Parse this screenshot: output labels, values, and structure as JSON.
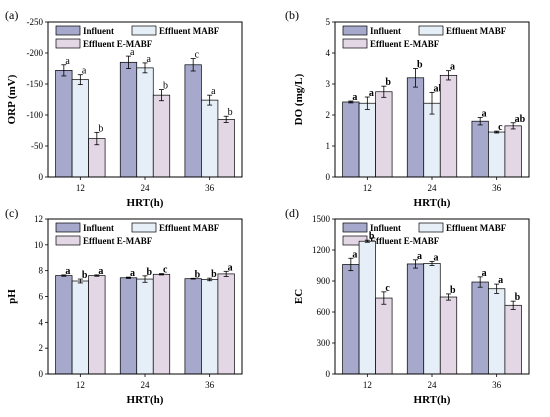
{
  "colors": {
    "influent": "#a6a9cc",
    "mabf": "#e6eff8",
    "emabf": "#e4d7e5",
    "stroke": "#000000"
  },
  "legend": [
    "Influent",
    "Effluent MABF",
    "Effluent E-MABF"
  ],
  "chart_data": [
    {
      "panel": "(a)",
      "type": "bar",
      "xlabel": "HRT(h)",
      "ylabel": "ORP (mV)",
      "categories": [
        "12",
        "24",
        "36"
      ],
      "ylim": [
        0,
        -250
      ],
      "yticks": [
        0,
        -50,
        -100,
        -150,
        -200,
        -250
      ],
      "yticklabels": [
        "0",
        "-50",
        "-100",
        "-150",
        "-200",
        "-250"
      ],
      "label_bold": false,
      "series": [
        {
          "name": "Influent",
          "values": [
            -172,
            -185,
            -181
          ],
          "errors": [
            9,
            10,
            10
          ],
          "labels": [
            "a",
            "a",
            "c"
          ]
        },
        {
          "name": "Effluent MABF",
          "values": [
            -157,
            -176,
            -124
          ],
          "errors": [
            8,
            8,
            8
          ],
          "labels": [
            "a",
            "a",
            "a"
          ]
        },
        {
          "name": "Effluent E-MABF",
          "values": [
            -62,
            -132,
            -93
          ],
          "errors": [
            10,
            9,
            5
          ],
          "labels": [
            "b",
            "b",
            "b"
          ]
        }
      ]
    },
    {
      "panel": "(b)",
      "type": "bar",
      "xlabel": "HRT(h)",
      "ylabel": "DO (mg/L)",
      "categories": [
        "12",
        "24",
        "36"
      ],
      "ylim": [
        0,
        5
      ],
      "yticks": [
        0,
        1,
        2,
        3,
        4,
        5
      ],
      "yticklabels": [
        "0",
        "1",
        "2",
        "3",
        "4",
        "5"
      ],
      "label_bold": true,
      "series": [
        {
          "name": "Influent",
          "values": [
            2.42,
            3.2,
            1.8
          ],
          "errors": [
            0.03,
            0.3,
            0.12
          ],
          "labels": [
            "a",
            "b",
            "a"
          ]
        },
        {
          "name": "Effluent MABF",
          "values": [
            2.38,
            2.38,
            1.45
          ],
          "errors": [
            0.2,
            0.35,
            0.03
          ],
          "labels": [
            "a",
            "ab",
            "c"
          ]
        },
        {
          "name": "Effluent E-MABF",
          "values": [
            2.75,
            3.28,
            1.65
          ],
          "errors": [
            0.18,
            0.15,
            0.1
          ],
          "labels": [
            "b",
            "a",
            "ab"
          ]
        }
      ]
    },
    {
      "panel": "(c)",
      "type": "bar",
      "xlabel": "HRT(h)",
      "ylabel": "pH",
      "categories": [
        "12",
        "24",
        "36"
      ],
      "ylim": [
        0,
        12
      ],
      "yticks": [
        0,
        2,
        4,
        6,
        8,
        10,
        12
      ],
      "yticklabels": [
        "0",
        "2",
        "4",
        "6",
        "8",
        "10",
        "12"
      ],
      "label_bold": true,
      "series": [
        {
          "name": "Influent",
          "values": [
            7.62,
            7.45,
            7.38
          ],
          "errors": [
            0.05,
            0.05,
            0.03
          ],
          "labels": [
            "a",
            "a",
            "b"
          ]
        },
        {
          "name": "Effluent MABF",
          "values": [
            7.2,
            7.35,
            7.32
          ],
          "errors": [
            0.15,
            0.25,
            0.1
          ],
          "labels": [
            "b",
            "b",
            "b"
          ]
        },
        {
          "name": "Effluent E-MABF",
          "values": [
            7.62,
            7.72,
            7.75
          ],
          "errors": [
            0.05,
            0.05,
            0.2
          ],
          "labels": [
            "a",
            "c",
            "a"
          ]
        }
      ]
    },
    {
      "panel": "(d)",
      "type": "bar",
      "xlabel": "HRT(h)",
      "ylabel": "EC",
      "categories": [
        "12",
        "24",
        "36"
      ],
      "ylim": [
        0,
        1500
      ],
      "yticks": [
        0,
        300,
        600,
        900,
        1200,
        1500
      ],
      "yticklabels": [
        "0",
        "300",
        "600",
        "900",
        "1200",
        "1500"
      ],
      "label_bold": true,
      "series": [
        {
          "name": "Influent",
          "values": [
            1060,
            1065,
            890
          ],
          "errors": [
            60,
            40,
            50
          ],
          "labels": [
            "a",
            "a",
            "a"
          ]
        },
        {
          "name": "Effluent MABF",
          "values": [
            1285,
            1070,
            825
          ],
          "errors": [
            10,
            20,
            45
          ],
          "labels": [
            "b",
            "a",
            "a"
          ]
        },
        {
          "name": "Effluent E-MABF",
          "values": [
            735,
            745,
            665
          ],
          "errors": [
            60,
            30,
            40
          ],
          "labels": [
            "c",
            "b",
            "b"
          ]
        }
      ]
    }
  ]
}
